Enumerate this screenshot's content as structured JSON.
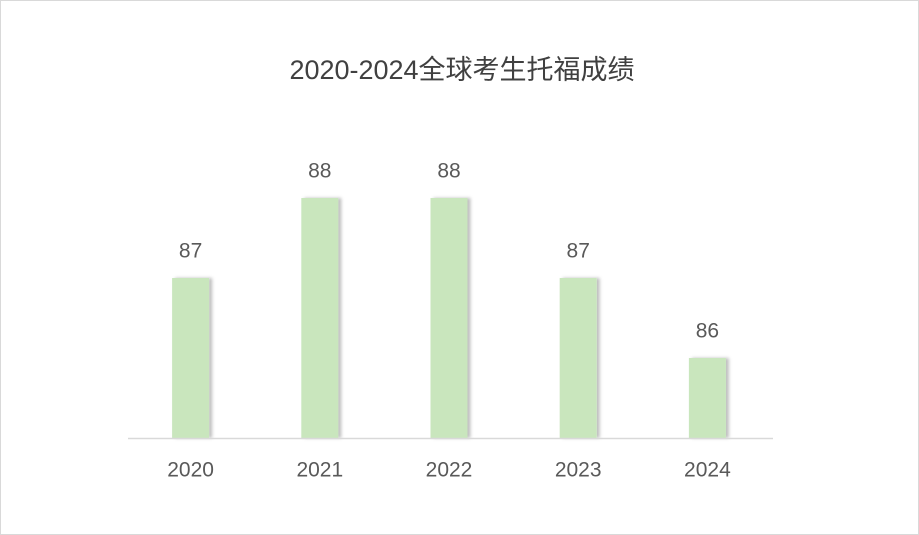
{
  "chart_data": {
    "type": "bar",
    "title": "2020-2024全球考生托福成绩",
    "categories": [
      "2020",
      "2021",
      "2022",
      "2023",
      "2024"
    ],
    "values": [
      87,
      88,
      88,
      87,
      86
    ],
    "color": "#c9e6bd",
    "ylim": [
      85,
      89
    ],
    "grid": false
  }
}
